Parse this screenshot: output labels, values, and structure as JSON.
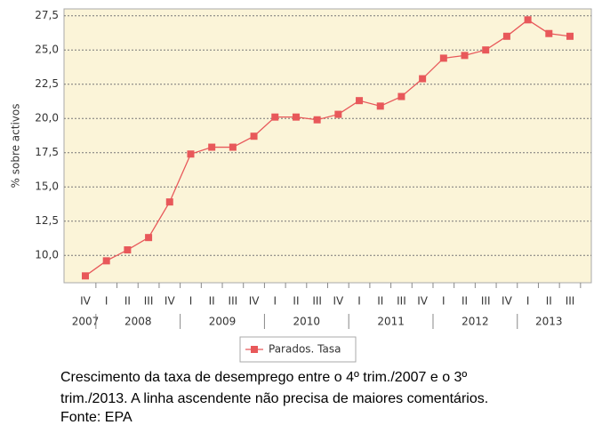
{
  "chart_data": {
    "type": "line",
    "y_label": "% sobre activos",
    "categories": [
      "IV",
      "I",
      "II",
      "III",
      "IV",
      "I",
      "II",
      "III",
      "IV",
      "I",
      "II",
      "III",
      "IV",
      "I",
      "II",
      "III",
      "IV",
      "I",
      "II",
      "III",
      "IV",
      "I",
      "II",
      "III"
    ],
    "years": [
      "2007",
      "2008",
      "2009",
      "2010",
      "2011",
      "2012",
      "2013"
    ],
    "series": [
      {
        "name": "Parados. Tasa",
        "color": "#e8585a",
        "values": [
          8.5,
          9.6,
          10.4,
          11.3,
          13.9,
          17.4,
          17.9,
          17.9,
          18.7,
          20.1,
          20.1,
          19.9,
          20.3,
          21.3,
          20.9,
          21.6,
          22.9,
          24.4,
          24.6,
          25.0,
          26.0,
          27.2,
          26.2,
          26.0
        ]
      }
    ],
    "ylim": [
      8,
      28
    ],
    "yticks": [
      {
        "value": 10,
        "label": "10,0"
      },
      {
        "value": 12.5,
        "label": "12,5"
      },
      {
        "value": 15,
        "label": "15,0"
      },
      {
        "value": 17.5,
        "label": "17,5"
      },
      {
        "value": 20,
        "label": "20,0"
      },
      {
        "value": 22.5,
        "label": "22,5"
      },
      {
        "value": 25,
        "label": "25,0"
      },
      {
        "value": 27.5,
        "label": "27,5"
      }
    ],
    "grid": true
  },
  "caption": [
    "Crescimento da taxa de desemprego entre o 4º trim./2007 e o 3º",
    "trim./2013.  A linha ascendente não precisa de maiores comentários.",
    "Fonte: EPA"
  ]
}
